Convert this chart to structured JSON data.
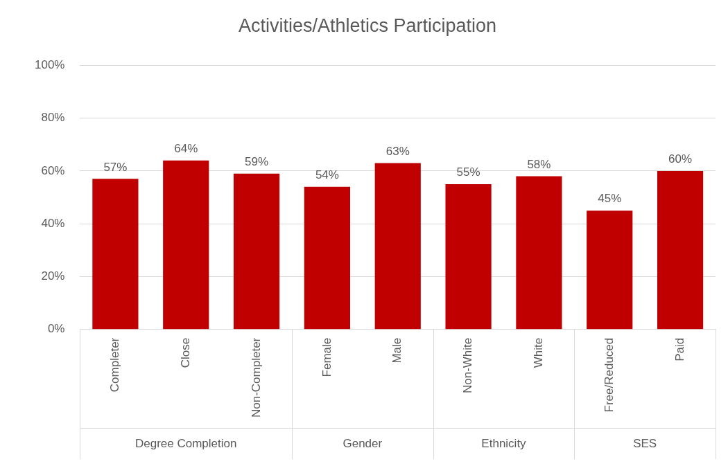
{
  "chart_data": {
    "type": "bar",
    "title": "Activities/Athletics Participation",
    "categories": [
      "Completer",
      "Close",
      "Non-Completer",
      "Female",
      "Male",
      "Non-White",
      "White",
      "Free/Reduced",
      "Paid"
    ],
    "values": [
      57,
      64,
      59,
      54,
      63,
      55,
      58,
      45,
      60
    ],
    "value_labels": [
      "57%",
      "64%",
      "59%",
      "54%",
      "63%",
      "55%",
      "58%",
      "45%",
      "60%"
    ],
    "color": "#c00000",
    "ylim": [
      0,
      100
    ],
    "yticks": [
      {
        "value": 0,
        "label": "0%"
      },
      {
        "value": 20,
        "label": "20%"
      },
      {
        "value": 40,
        "label": "40%"
      },
      {
        "value": 60,
        "label": "60%"
      },
      {
        "value": 80,
        "label": "80%"
      },
      {
        "value": 100,
        "label": "100%"
      }
    ],
    "grid": "y",
    "legend": false,
    "annotations": [
      "Degree Completion",
      "Gender",
      "Ethnicity",
      "SES"
    ]
  }
}
